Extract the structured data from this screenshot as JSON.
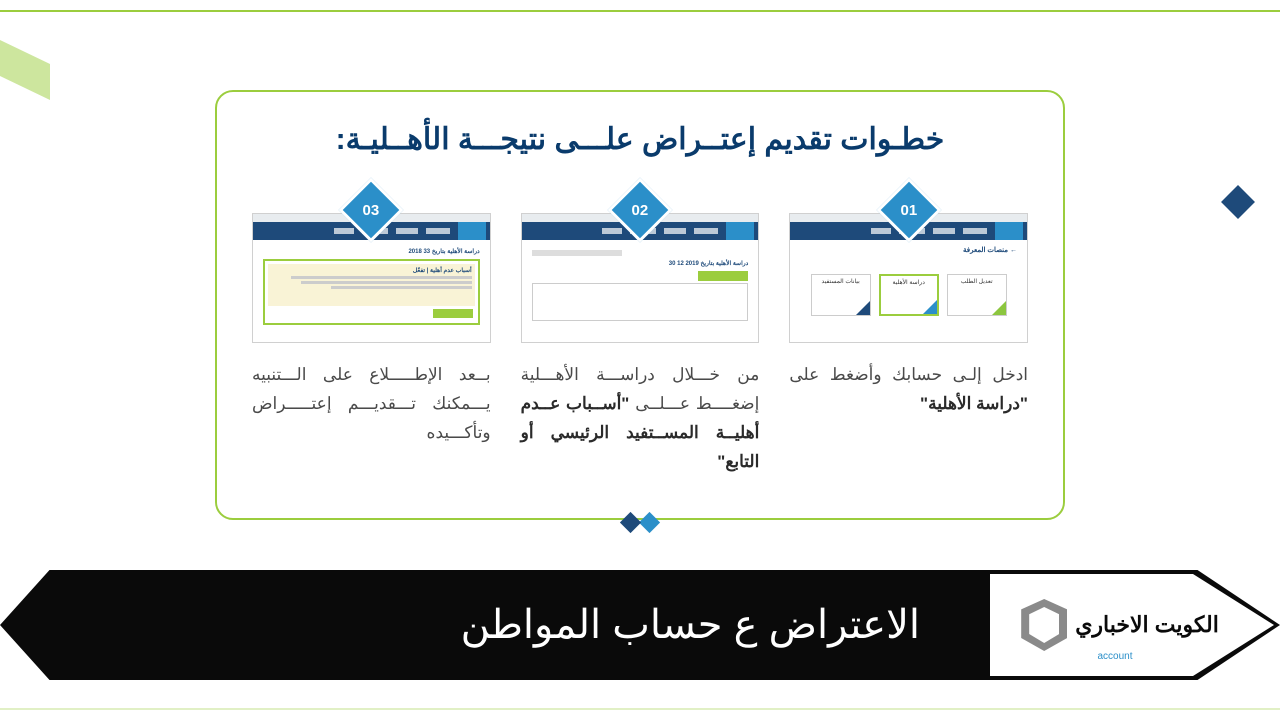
{
  "colors": {
    "green": "#9bcd3e",
    "navy": "#1e4a7a",
    "blue": "#2b8fc9",
    "black": "#0a0a0a",
    "text": "#4a4a4a",
    "white": "#ffffff"
  },
  "title": "خطـوات تقديم إعتــراض علـــى نتيجـــة الأهــليـة:",
  "steps": [
    {
      "badge": "01",
      "text_html": "ادخل إلـى حسابك وأضغط على <b>\"دراسة الأهلية\"</b>",
      "screenshot": {
        "type": "dashboard-cards",
        "header_text": "← منصات المعرفة",
        "cards": [
          {
            "label": "تعديل الطلب",
            "accent": "#8cc63f"
          },
          {
            "label": "دراسة الأهلية",
            "accent": "#2b8fc9",
            "highlighted": true
          },
          {
            "label": "بيانات المستفيد",
            "accent": "#1e4a7a"
          }
        ]
      }
    },
    {
      "badge": "02",
      "text_html": "من خـــلال دراســـة الأهـــلية إضغــــط عـــلــى <b>\"أســباب عــدم أهليــة المســتفيد الرئيسي أو التابع\"</b>",
      "screenshot": {
        "type": "eligibility-study",
        "heading": "دراسة الأهلية بتاريخ 2019 12 30",
        "button_color": "#9bcd3e"
      }
    },
    {
      "badge": "03",
      "text_html": "بــعد الإطـــــلاع على الـــتنبيه يـــمكنك تـــقديـــم إعتـــــراض وتأكـــيده",
      "screenshot": {
        "type": "alert-box",
        "heading": "دراسة الأهلية بتاريخ 33 2018",
        "alert_title": "أسباب عدم أهلية | تفعّل",
        "button_color": "#9bcd3e",
        "alert_bg": "#f9f3d6",
        "border_color": "#9bcd3e"
      }
    }
  ],
  "footer": {
    "headline": "الاعتراض ع حساب المواطن",
    "logo_text": "الكويت الاخباري",
    "logo_sub": "account"
  }
}
